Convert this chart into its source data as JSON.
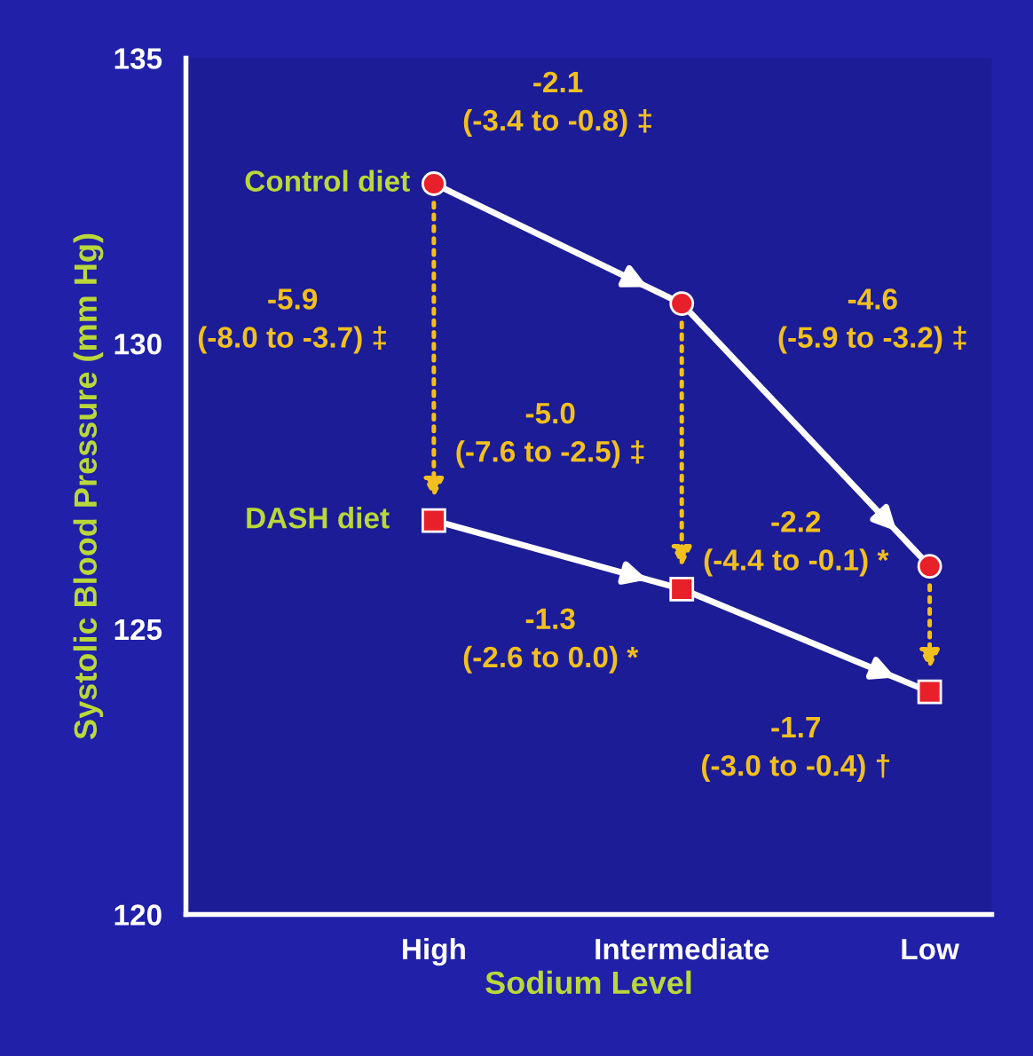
{
  "chart_data": {
    "type": "line",
    "xlabel": "Sodium Level",
    "ylabel": "Systolic Blood Pressure (mm Hg)",
    "categories": [
      "High",
      "Intermediate",
      "Low"
    ],
    "ylim": [
      120,
      135
    ],
    "yticks": [
      120,
      125,
      130,
      135
    ],
    "grid": false,
    "legend": false,
    "series": [
      {
        "name": "Control diet",
        "color": "#e8202a",
        "marker": "circle",
        "values": [
          132.8,
          130.7,
          126.1
        ]
      },
      {
        "name": "DASH diet",
        "color": "#e8202a",
        "marker": "square",
        "values": [
          126.9,
          125.7,
          123.9
        ]
      }
    ],
    "annotations": [
      "-2.1\n(-3.4 to -0.8) ‡",
      "-4.6\n(-5.9 to -3.2) ‡",
      "-5.9\n(-8.0 to -3.7) ‡",
      "-5.0\n(-7.6 to -2.5) ‡",
      "-2.2\n(-4.4 to -0.1) *",
      "-1.3\n(-2.6 to 0.0) *",
      "-1.7\n(-3.0 to -0.4) †"
    ]
  }
}
